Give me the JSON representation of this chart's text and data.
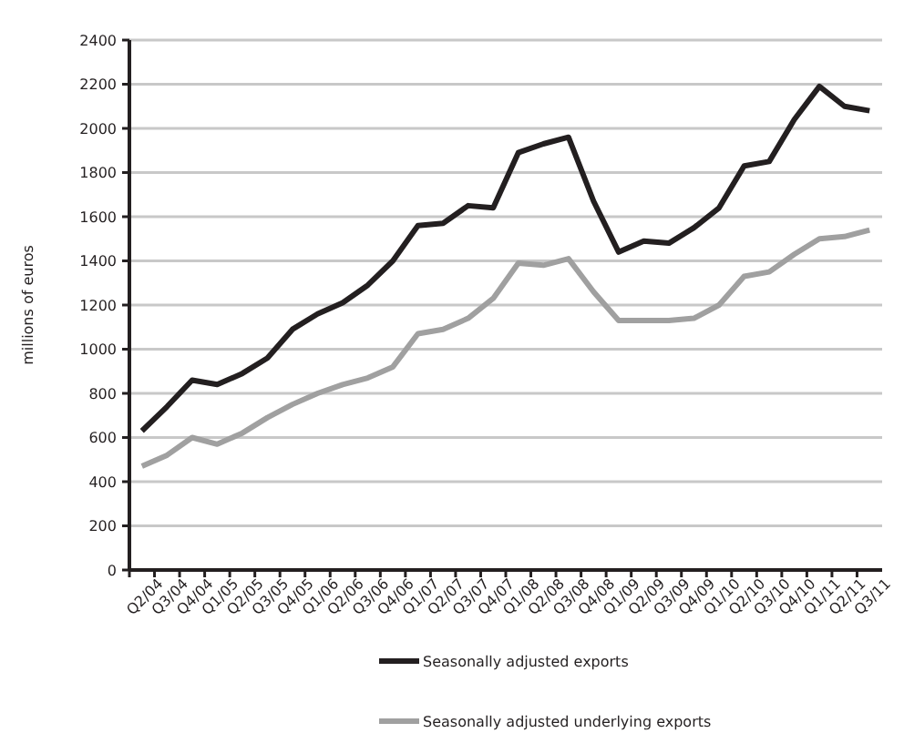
{
  "chart_data": {
    "type": "line",
    "ylabel": "millions of euros",
    "categories": [
      "Q2/04",
      "Q3/04",
      "Q4/04",
      "Q1/05",
      "Q2/05",
      "Q3/05",
      "Q4/05",
      "Q1/06",
      "Q2/06",
      "Q3/06",
      "Q4/06",
      "Q1/07",
      "Q2/07",
      "Q3/07",
      "Q4/07",
      "Q1/08",
      "Q2/08",
      "Q3/08",
      "Q4/08",
      "Q1/09",
      "Q2/09",
      "Q3/09",
      "Q4/09",
      "Q1/10",
      "Q2/10",
      "Q3/10",
      "Q4/10",
      "Q1/11",
      "Q2/11",
      "Q3/11"
    ],
    "series": [
      {
        "name": "Seasonally adjusted exports",
        "color": "#231f20",
        "values": [
          630,
          740,
          860,
          840,
          890,
          960,
          1090,
          1160,
          1210,
          1290,
          1400,
          1560,
          1570,
          1650,
          1640,
          1890,
          1930,
          1960,
          1670,
          1440,
          1490,
          1480,
          1550,
          1640,
          1830,
          1850,
          2040,
          2190,
          2100,
          2080
        ]
      },
      {
        "name": "Seasonally adjusted underlying exports",
        "color": "#a0a0a0",
        "values": [
          470,
          520,
          600,
          570,
          620,
          690,
          750,
          800,
          840,
          870,
          920,
          1070,
          1090,
          1140,
          1230,
          1390,
          1380,
          1410,
          1260,
          1130,
          1130,
          1130,
          1140,
          1200,
          1330,
          1350,
          1430,
          1500,
          1510,
          1540
        ]
      }
    ],
    "ylim": [
      0,
      2400
    ],
    "yticks": [
      0,
      200,
      400,
      600,
      800,
      1000,
      1200,
      1400,
      1600,
      1800,
      2000,
      2200,
      2400
    ],
    "grid": "y",
    "legend": "bottom",
    "marker": "none",
    "line_style": "solid"
  }
}
